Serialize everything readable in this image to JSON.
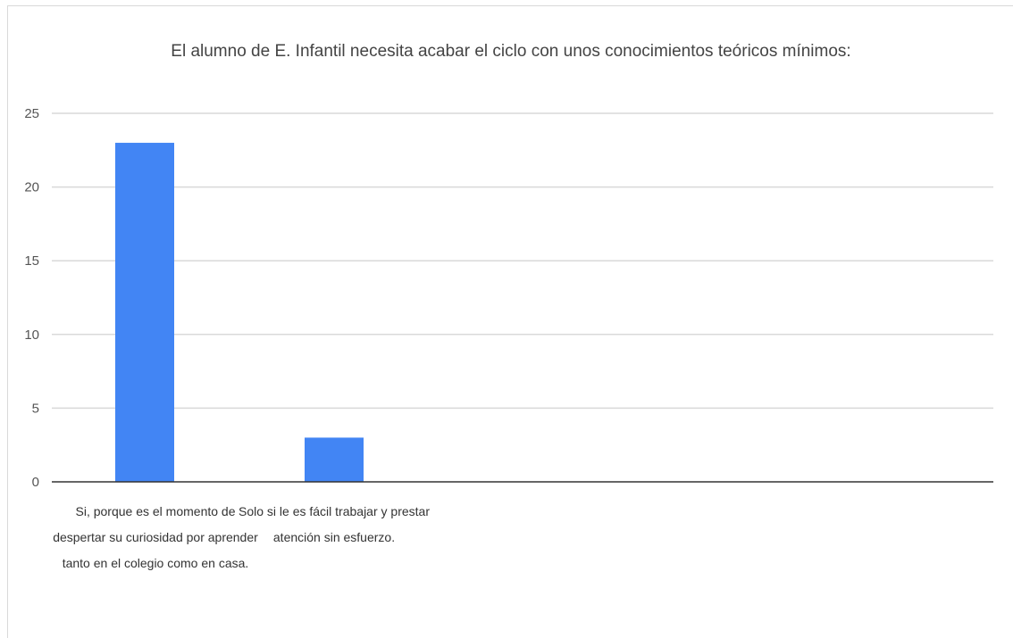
{
  "chart_data": {
    "type": "bar",
    "title": "El alumno de E. Infantil necesita acabar el ciclo con unos conocimientos teóricos mínimos:",
    "xlabel": "",
    "ylabel": "",
    "ylim": [
      0,
      25
    ],
    "yticks": [
      0,
      5,
      10,
      15,
      20,
      25
    ],
    "grid": true,
    "legend": "none",
    "categories": [
      [
        "Si, porque es el momento de",
        "despertar su curiosidad por aprender",
        "tanto en el colegio como en casa."
      ],
      [
        "Solo si le es fácil trabajar y prestar",
        "atención sin esfuerzo."
      ]
    ],
    "values": [
      23,
      3
    ],
    "colors": {
      "bar": "#4285f4",
      "grid": "#d9d9d9",
      "axis": "#333333"
    }
  }
}
